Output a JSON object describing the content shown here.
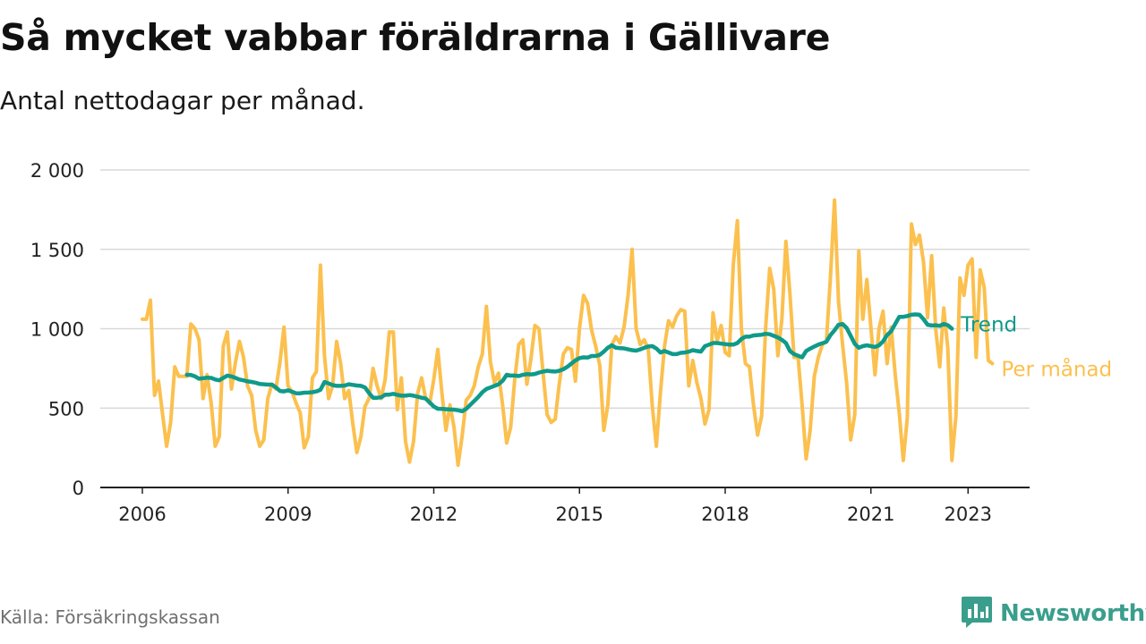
{
  "title": "Så mycket vabbar föräldrarna i Gällivare",
  "subtitle": "Antal nettodagar per månad.",
  "source": "Källa: Försäkringskassan",
  "brand": {
    "name": "Newsworthy",
    "icon": "bar-chart-speech-bubble-icon",
    "color": "#3a9e8c"
  },
  "colors": {
    "per_month": "#fbc04e",
    "trend": "#0f9a8a",
    "grid": "#d9d9d9",
    "axis": "#222222"
  },
  "chart_data": {
    "type": "line",
    "title": "Så mycket vabbar föräldrarna i Gällivare",
    "subtitle": "Antal nettodagar per månad.",
    "xlabel": "",
    "ylabel": "",
    "x_unit": "year (monthly data, decimal year)",
    "xlim": [
      2005.83,
      2023.75
    ],
    "ylim": [
      0,
      2000
    ],
    "grid": true,
    "legend": "inline labels at line ends",
    "y_ticks": [
      0,
      500,
      1000,
      1500,
      2000
    ],
    "y_tick_labels": [
      "0",
      "500",
      "1 000",
      "1 500",
      "2 000"
    ],
    "x_ticks": [
      2006,
      2009,
      2012,
      2015,
      2018,
      2021,
      2023
    ],
    "x_tick_labels": [
      "2006",
      "2009",
      "2012",
      "2015",
      "2018",
      "2021",
      "2023"
    ],
    "series": [
      {
        "name": "Per månad",
        "start": 2006.0,
        "step": 0.083333,
        "values": [
          1060,
          1060,
          1180,
          580,
          670,
          460,
          260,
          410,
          760,
          700,
          700,
          700,
          1030,
          1000,
          930,
          560,
          710,
          530,
          260,
          320,
          890,
          980,
          620,
          790,
          920,
          820,
          640,
          580,
          360,
          260,
          300,
          560,
          650,
          620,
          790,
          1010,
          640,
          600,
          530,
          470,
          250,
          320,
          690,
          730,
          1400,
          830,
          560,
          640,
          920,
          780,
          560,
          610,
          400,
          220,
          320,
          510,
          560,
          750,
          640,
          560,
          680,
          980,
          980,
          490,
          690,
          290,
          160,
          290,
          590,
          690,
          560,
          530,
          680,
          870,
          600,
          360,
          520,
          380,
          140,
          320,
          550,
          580,
          640,
          760,
          840,
          1140,
          790,
          660,
          720,
          520,
          280,
          380,
          680,
          900,
          930,
          650,
          810,
          1020,
          1000,
          720,
          460,
          410,
          430,
          650,
          840,
          880,
          870,
          670,
          1000,
          1210,
          1160,
          990,
          890,
          770,
          360,
          520,
          900,
          950,
          910,
          1010,
          1210,
          1500,
          1000,
          900,
          930,
          870,
          510,
          260,
          600,
          890,
          1050,
          1010,
          1080,
          1120,
          1110,
          640,
          800,
          660,
          560,
          400,
          490,
          1100,
          920,
          1020,
          850,
          830,
          1400,
          1680,
          1000,
          780,
          760,
          520,
          330,
          450,
          1010,
          1380,
          1250,
          830,
          1060,
          1550,
          1220,
          820,
          820,
          520,
          180,
          360,
          700,
          820,
          900,
          920,
          1320,
          1810,
          1170,
          900,
          660,
          300,
          460,
          1490,
          1060,
          1310,
          1010,
          710,
          1000,
          1110,
          780,
          1010,
          710,
          470,
          170,
          440,
          1660,
          1530,
          1590,
          1420,
          1070,
          1460,
          1000,
          760,
          1130,
          880,
          170,
          450,
          1320,
          1210,
          1400,
          1440,
          820,
          1370,
          1260,
          800,
          780
        ]
      },
      {
        "name": "Trend",
        "start": 2006.917,
        "step": 0.083333,
        "values": [
          710,
          708,
          700,
          685,
          688,
          692,
          690,
          680,
          675,
          690,
          705,
          700,
          690,
          680,
          675,
          668,
          665,
          660,
          652,
          650,
          648,
          648,
          630,
          608,
          605,
          612,
          603,
          593,
          593,
          597,
          598,
          600,
          605,
          615,
          665,
          655,
          645,
          640,
          640,
          642,
          650,
          646,
          642,
          640,
          630,
          595,
          565,
          565,
          568,
          585,
          585,
          590,
          583,
          578,
          578,
          582,
          578,
          572,
          565,
          560,
          535,
          510,
          496,
          495,
          493,
          491,
          490,
          486,
          480,
          495,
          520,
          545,
          570,
          600,
          620,
          630,
          640,
          650,
          672,
          710,
          705,
          705,
          702,
          710,
          714,
          712,
          715,
          724,
          730,
          735,
          732,
          730,
          735,
          745,
          760,
          780,
          800,
          815,
          820,
          818,
          828,
          828,
          835,
          856,
          880,
          895,
          880,
          878,
          876,
          870,
          865,
          862,
          870,
          880,
          888,
          890,
          875,
          850,
          860,
          850,
          840,
          840,
          848,
          850,
          855,
          865,
          860,
          856,
          890,
          900,
          910,
          910,
          906,
          903,
          900,
          900,
          910,
          935,
          950,
          950,
          958,
          960,
          962,
          968,
          965,
          955,
          945,
          930,
          910,
          860,
          840,
          830,
          820,
          860,
          875,
          888,
          900,
          908,
          918,
          960,
          990,
          1025,
          1030,
          1005,
          955,
          905,
          880,
          890,
          895,
          890,
          885,
          895,
          920,
          960,
          985,
          1030,
          1075,
          1075,
          1080,
          1088,
          1090,
          1088,
          1060,
          1025,
          1020,
          1022,
          1018,
          1030,
          1022,
          1000
        ]
      }
    ]
  }
}
